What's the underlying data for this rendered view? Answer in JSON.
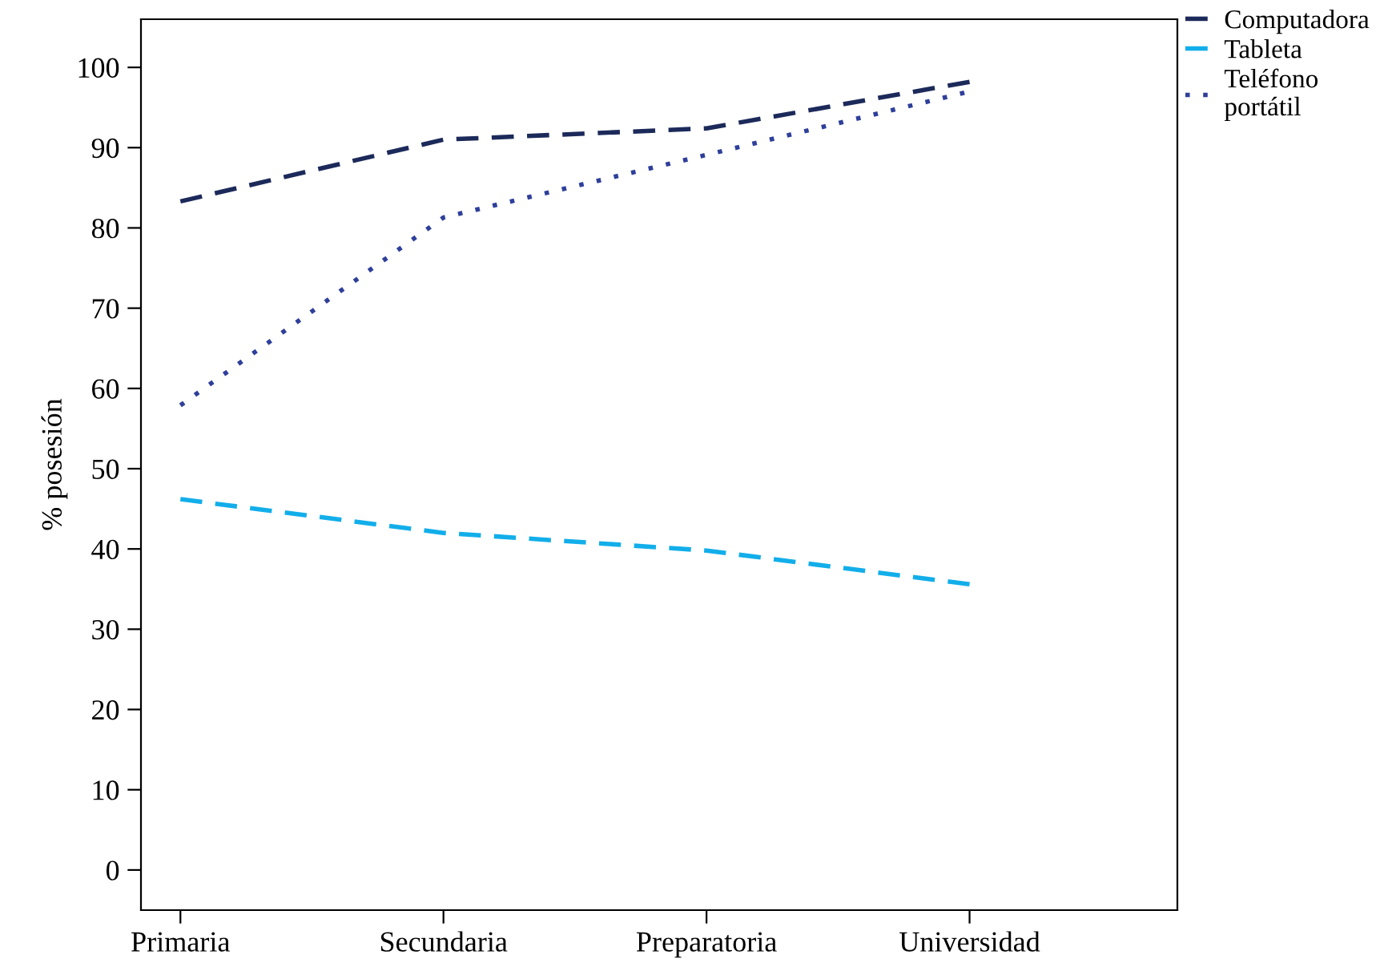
{
  "chart_data": {
    "type": "line",
    "ylabel": "% posesión",
    "categories": [
      "Primaria",
      "Secundaria",
      "Preparatoria",
      "Universidad"
    ],
    "series": [
      {
        "name": "Computadora",
        "color": "#1c2a5a",
        "line_style": "dashed",
        "values": [
          83.3,
          91.0,
          92.4,
          98.2
        ]
      },
      {
        "name": "Tableta",
        "color": "#12aeea",
        "line_style": "dashed",
        "values": [
          46.2,
          42.0,
          39.8,
          35.6
        ]
      },
      {
        "name": "Teléfono\nportátil",
        "color": "#2e3f9a",
        "line_style": "dotted",
        "values": [
          57.9,
          81.3,
          89.1,
          97.0
        ]
      }
    ],
    "ylim": [
      -5,
      106
    ],
    "yticks": [
      0,
      10,
      20,
      30,
      40,
      50,
      60,
      70,
      80,
      90,
      100
    ],
    "grid": false,
    "legend": "top right",
    "marker": "none"
  }
}
